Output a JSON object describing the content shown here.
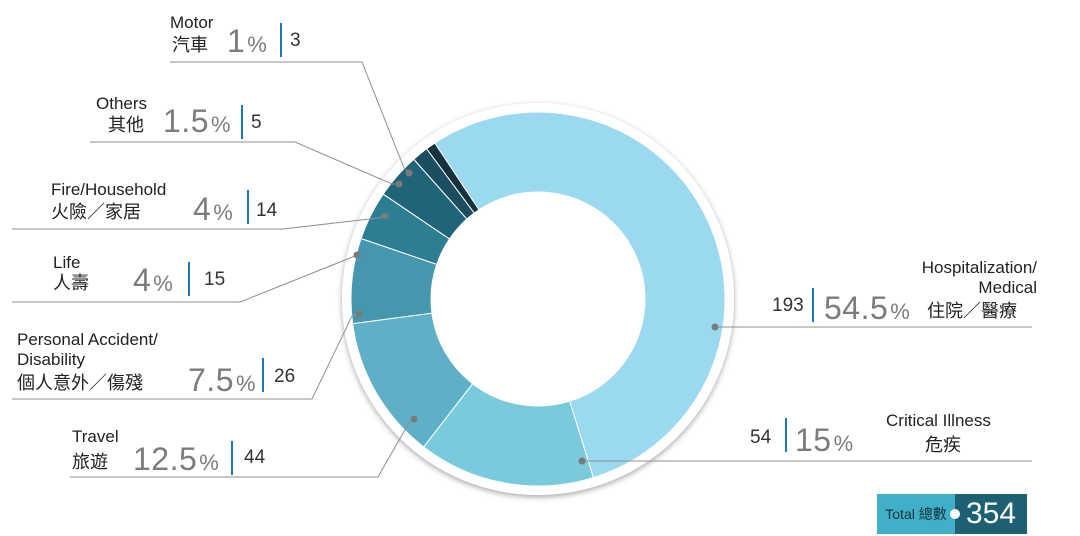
{
  "chart_data": {
    "type": "donut",
    "total_label": "Total 總數",
    "total_value": "354",
    "slices": [
      {
        "en": "Hospitalization/\nMedical",
        "zh": "住院／醫療",
        "pct": "54.5",
        "count": "193",
        "value": 193,
        "color": "#9ad9ef"
      },
      {
        "en": "Critical Illness",
        "zh": "危疾",
        "pct": "15",
        "count": "54",
        "value": 54,
        "color": "#7acadd"
      },
      {
        "en": "Travel",
        "zh": "旅遊",
        "pct": "12.5",
        "count": "44",
        "value": 44,
        "color": "#5fb0c6"
      },
      {
        "en": "Personal Accident/\nDisability",
        "zh": "個人意外／傷殘",
        "pct": "7.5",
        "count": "26",
        "value": 26,
        "color": "#4497ad"
      },
      {
        "en": "Life",
        "zh": "人壽",
        "pct": "4",
        "count": "15",
        "value": 15,
        "color": "#2d7d93"
      },
      {
        "en": "Fire/Household",
        "zh": "火險／家居",
        "pct": "4",
        "count": "14",
        "value": 14,
        "color": "#1f6478"
      },
      {
        "en": "Others",
        "zh": "其他",
        "pct": "1.5",
        "count": "5",
        "value": 5,
        "color": "#1b4e60"
      },
      {
        "en": "Motor",
        "zh": "汽車",
        "pct": "1",
        "count": "3",
        "value": 3,
        "color": "#14323f"
      }
    ]
  }
}
